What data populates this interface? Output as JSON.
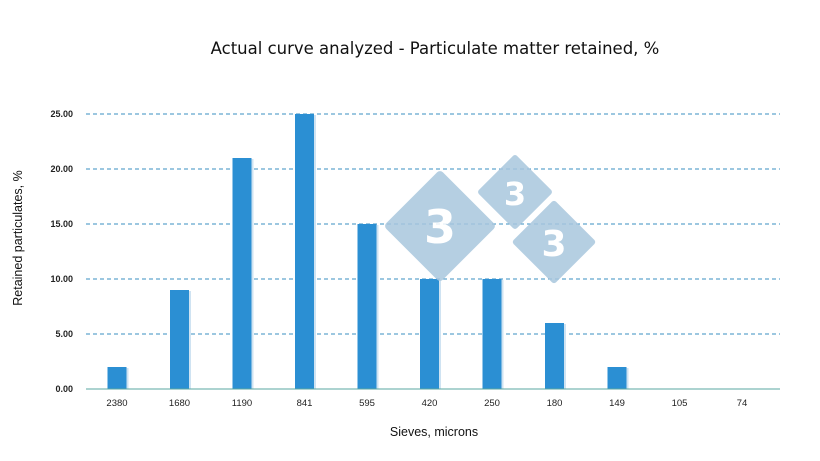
{
  "chart_data": {
    "type": "bar",
    "title": "Actual curve analyzed - Particulate matter retained, %",
    "xlabel": "Sieves, microns",
    "ylabel": "Retained particulates, %",
    "categories": [
      "2380",
      "1680",
      "1190",
      "841",
      "595",
      "420",
      "250",
      "180",
      "149",
      "105",
      "74"
    ],
    "values": [
      2,
      9,
      21,
      25,
      15,
      10,
      10,
      6,
      2,
      0,
      0
    ],
    "ylim": [
      0,
      25
    ],
    "yticks": [
      "0.00",
      "5.00",
      "10.00",
      "15.00",
      "20.00",
      "25.00"
    ],
    "grid": "horizontal dashed",
    "bar_color": "#2b8fd3",
    "grid_color": "#3a8fc0",
    "axis_color": "#5aa7a0"
  },
  "watermark": {
    "text": "3",
    "color": "#a9c7de"
  }
}
